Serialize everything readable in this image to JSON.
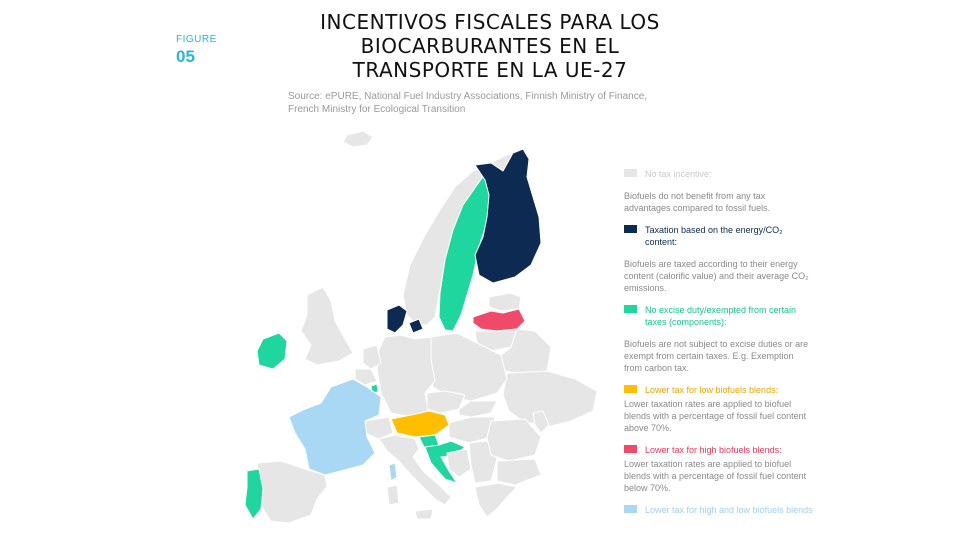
{
  "header": {
    "title_line1": "INCENTIVOS FISCALES PARA LOS",
    "title_line2": "BIOCARBURANTES EN EL",
    "title_line3": "TRANSPORTE EN LA UE-27",
    "figure_label": "FIGURE",
    "figure_number": "05"
  },
  "source": "Source: ePURE, National Fuel Industry Associations, Finnish Ministry of Finance, French Ministry for Ecological Transition",
  "colors": {
    "no_incentive": "#e6e6e6",
    "energy_co2": "#0d2a52",
    "exempt": "#1fd69e",
    "low_blend": "#ffbf00",
    "high_blend": "#f04a6a",
    "high_low_blend": "#a9d8f5",
    "accent": "#29b6d9"
  },
  "legend": [
    {
      "key": "no_incentive",
      "label": "No tax incentive:",
      "description": "Biofuels do not benefit from any tax advantages compared to fossil fuels.",
      "color": "#e6e6e6",
      "text_color": "#c9c9c9"
    },
    {
      "key": "energy_co2",
      "label": "Taxation based on the energy/CO₂ content:",
      "description": "Biofuels are taxed according to their energy content (calorific value) and their average CO₂ emissions.",
      "color": "#0d2a52",
      "text_color": "#0d2a52"
    },
    {
      "key": "exempt",
      "label": "No excise duty/exempted from certain taxes (components):",
      "description": "Biofuels are not subject to excise duties or are exempt from certain taxes. E.g. Exemption from carbon tax.",
      "color": "#1fd69e",
      "text_color": "#16c48d"
    },
    {
      "key": "low_blend",
      "label": "Lower tax for low biofuels blends:",
      "description": "Lower taxation rates are applied to biofuel blends with a percentage of fossil fuel content above 70%.",
      "color": "#ffbf00",
      "text_color": "#e6a800"
    },
    {
      "key": "high_blend",
      "label": "Lower tax for high biofuels blends:",
      "description": "Lower taxation rates are applied to biofuel blends with a percentage of fossil fuel content below 70%.",
      "color": "#f04a6a",
      "text_color": "#e8385a"
    },
    {
      "key": "high_low_blend",
      "label": "Lower tax for high and low biofuels blends",
      "description": "",
      "color": "#a9d8f5",
      "text_color": "#9fd0f0"
    }
  ]
}
